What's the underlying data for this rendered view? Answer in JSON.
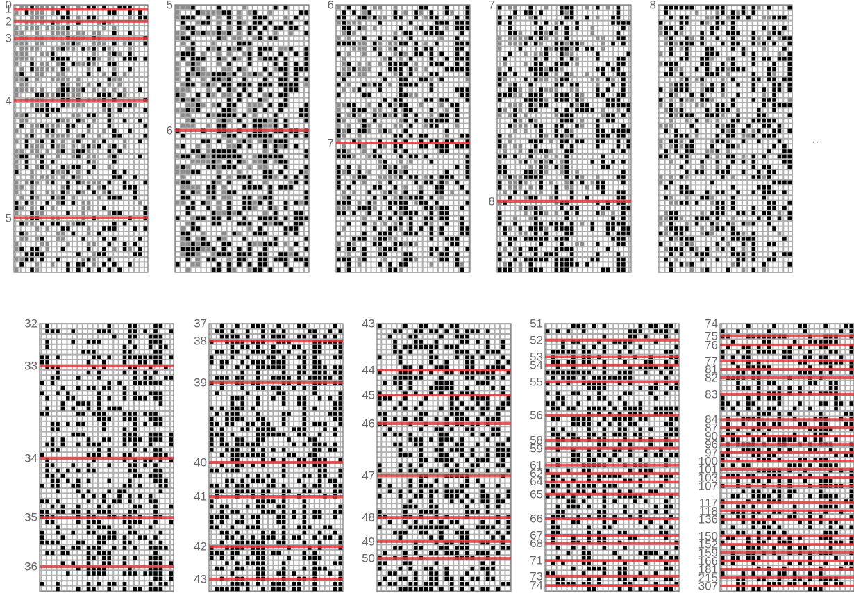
{
  "panels": [
    {
      "labels": [
        0,
        1,
        2,
        3,
        4,
        5
      ]
    },
    {
      "labels": [
        5,
        6
      ]
    },
    {
      "labels": [
        6,
        7
      ]
    },
    {
      "labels": [
        7,
        8
      ]
    },
    {
      "labels": [
        8
      ]
    },
    {
      "labels": [
        32,
        33,
        34,
        35,
        36
      ]
    },
    {
      "labels": [
        37,
        38,
        39,
        40,
        41,
        42,
        43
      ]
    },
    {
      "labels": [
        43,
        44,
        45,
        46,
        47,
        48,
        49,
        50
      ]
    },
    {
      "labels": [
        51,
        52,
        53,
        54,
        55,
        56,
        58,
        59,
        61,
        62,
        64,
        65,
        66,
        67,
        68,
        71,
        73,
        74
      ]
    },
    {
      "labels": [
        74,
        75,
        76,
        77,
        81,
        82,
        83,
        84,
        87,
        90,
        96,
        97,
        100,
        101,
        103,
        107,
        117,
        118,
        136,
        150,
        152,
        159,
        166,
        181,
        215,
        307
      ]
    }
  ],
  "ellipsis": "…"
}
